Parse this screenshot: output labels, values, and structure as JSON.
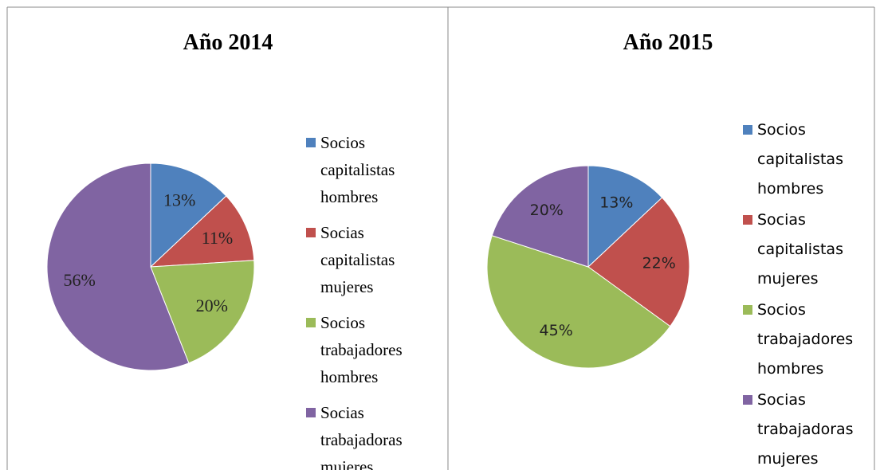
{
  "chart_data": [
    {
      "type": "pie",
      "title": "Año 2014",
      "categories": [
        "Socios capitalistas hombres",
        "Socias capitalistas mujeres",
        "Socios trabajadores hombres",
        "Socias trabajadoras mujeres"
      ],
      "values": [
        13,
        11,
        20,
        56
      ],
      "value_labels": [
        "13%",
        "11%",
        "20%",
        "56%"
      ],
      "colors": [
        "#4f81bd",
        "#c0504d",
        "#9bbb59",
        "#8064a2"
      ],
      "legend": "right"
    },
    {
      "type": "pie",
      "title": "Año 2015",
      "categories": [
        "Socios capitalistas hombres",
        "Socias capitalistas mujeres",
        "Socios trabajadores hombres",
        "Socias trabajadoras mujeres"
      ],
      "values": [
        13,
        22,
        45,
        20
      ],
      "value_labels": [
        "13%",
        "22%",
        "45%",
        "20%"
      ],
      "colors": [
        "#4f81bd",
        "#c0504d",
        "#9bbb59",
        "#8064a2"
      ],
      "legend": "right"
    }
  ]
}
